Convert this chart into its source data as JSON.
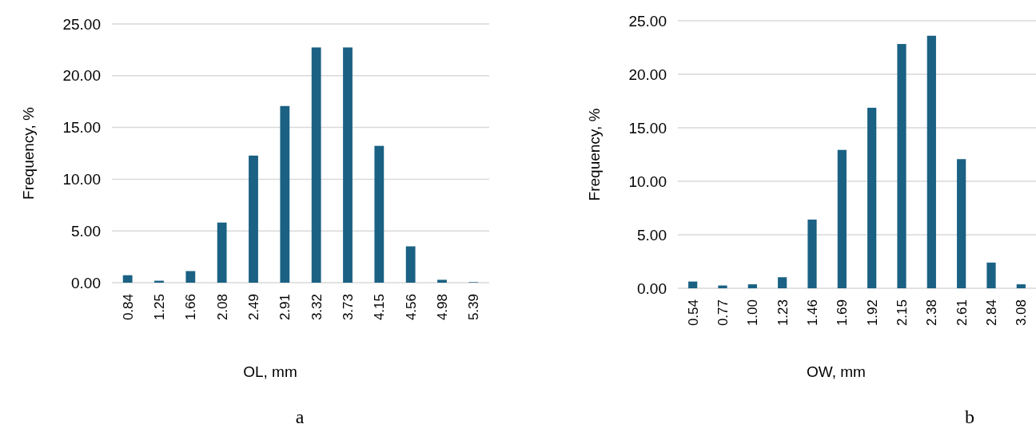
{
  "chart_data": [
    {
      "type": "bar",
      "xlabel": "OL, mm",
      "ylabel": "Frequency, %",
      "categories": [
        "0.84",
        "1.25",
        "1.66",
        "2.08",
        "2.49",
        "2.91",
        "3.32",
        "3.73",
        "4.15",
        "4.56",
        "4.98",
        "5.39"
      ],
      "values": [
        0.72,
        0.19,
        1.12,
        5.81,
        12.28,
        17.07,
        22.73,
        22.73,
        13.22,
        3.51,
        0.28,
        0.05
      ],
      "color": "#1a6184",
      "ylim": [
        0,
        25
      ],
      "yticks": [
        {
          "value": 0,
          "label": "0.00"
        },
        {
          "value": 5,
          "label": "5.00"
        },
        {
          "value": 10,
          "label": "10.00"
        },
        {
          "value": 15,
          "label": "15.00"
        },
        {
          "value": 20,
          "label": "20.00"
        },
        {
          "value": 25,
          "label": "25.00"
        }
      ],
      "grid": "y",
      "annotations": [
        "a"
      ]
    },
    {
      "type": "bar",
      "xlabel": "OW, mm",
      "ylabel": "Frequency, %",
      "categories": [
        "0.54",
        "0.77",
        "1.00",
        "1.23",
        "1.46",
        "1.69",
        "1.92",
        "2.15",
        "2.38",
        "2.61",
        "2.84",
        "3.08"
      ],
      "values": [
        0.63,
        0.26,
        0.37,
        1.03,
        6.42,
        12.93,
        16.87,
        22.83,
        23.6,
        12.07,
        2.4,
        0.37
      ],
      "color": "#1a6184",
      "ylim": [
        0,
        25
      ],
      "yticks": [
        {
          "value": 0,
          "label": "0.00"
        },
        {
          "value": 5,
          "label": "5.00"
        },
        {
          "value": 10,
          "label": "10.00"
        },
        {
          "value": 15,
          "label": "15.00"
        },
        {
          "value": 20,
          "label": "20.00"
        },
        {
          "value": 25,
          "label": "25.00"
        }
      ],
      "grid": "y",
      "annotations": [
        "b"
      ]
    }
  ]
}
